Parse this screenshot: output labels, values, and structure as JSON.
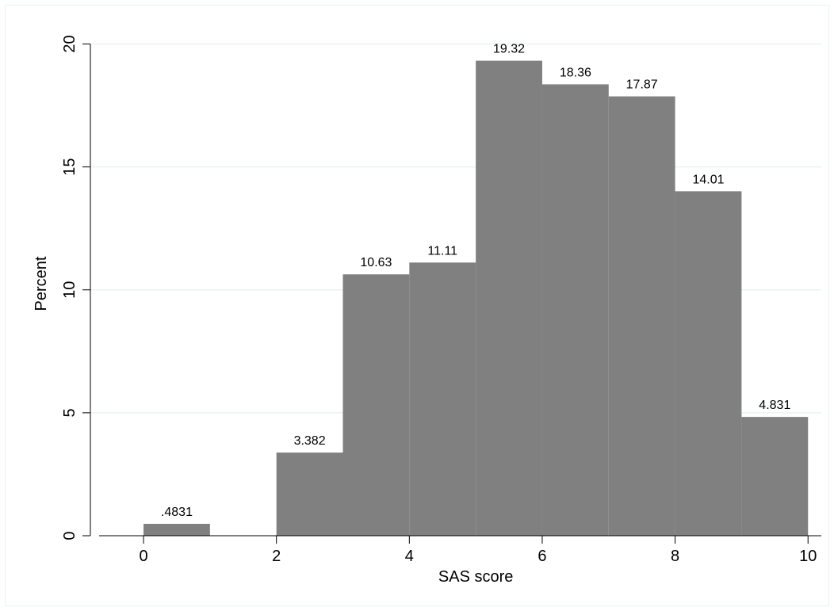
{
  "chart_data": {
    "type": "bar",
    "subtype": "histogram",
    "xlabel": "SAS score",
    "ylabel": "Percent",
    "xlim": [
      -0.8,
      10.2
    ],
    "ylim": [
      0,
      20.5
    ],
    "x_ticks": [
      0,
      2,
      4,
      6,
      8,
      10
    ],
    "y_ticks": [
      0,
      5,
      10,
      15,
      20
    ],
    "grid": true,
    "bar_color": "#808080",
    "grid_color": "#eaf2f3",
    "bins": [
      {
        "x0": 0,
        "x1": 1,
        "value": 0.4831,
        "label": ".4831"
      },
      {
        "x0": 2,
        "x1": 3,
        "value": 3.382,
        "label": "3.382"
      },
      {
        "x0": 3,
        "x1": 4,
        "value": 10.63,
        "label": "10.63"
      },
      {
        "x0": 4,
        "x1": 5,
        "value": 11.11,
        "label": "11.11"
      },
      {
        "x0": 5,
        "x1": 6,
        "value": 19.32,
        "label": "19.32"
      },
      {
        "x0": 6,
        "x1": 7,
        "value": 18.36,
        "label": "18.36"
      },
      {
        "x0": 7,
        "x1": 8,
        "value": 17.87,
        "label": "17.87"
      },
      {
        "x0": 8,
        "x1": 9,
        "value": 14.01,
        "label": "14.01"
      },
      {
        "x0": 9,
        "x1": 10,
        "value": 4.831,
        "label": "4.831"
      }
    ]
  }
}
